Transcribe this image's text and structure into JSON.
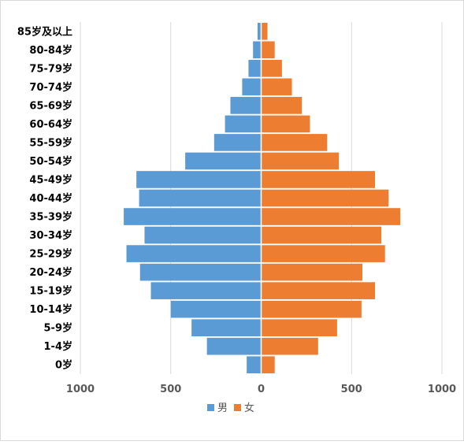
{
  "chart_data": {
    "type": "bar",
    "orientation": "horizontal",
    "layout": "population-pyramid",
    "title": "",
    "xlabel": "",
    "ylabel": "",
    "categories": [
      "85岁及以上",
      "80-84岁",
      "75-79岁",
      "70-74岁",
      "65-69岁",
      "60-64岁",
      "55-59岁",
      "50-54岁",
      "45-49岁",
      "40-44岁",
      "35-39岁",
      "30-34岁",
      "25-29岁",
      "20-24岁",
      "15-19岁",
      "10-14岁",
      "5-9岁",
      "1-4岁",
      "0岁"
    ],
    "series": [
      {
        "name": "男",
        "color": "#5B9BD5",
        "values": [
          20,
          45,
          70,
          105,
          170,
          200,
          260,
          420,
          690,
          675,
          760,
          645,
          745,
          670,
          610,
          500,
          385,
          300,
          80
        ]
      },
      {
        "name": "女",
        "color": "#ED7D31",
        "values": [
          35,
          75,
          115,
          170,
          225,
          270,
          365,
          430,
          630,
          705,
          770,
          665,
          685,
          560,
          630,
          555,
          420,
          315,
          75
        ]
      }
    ],
    "xlim": [
      -1000,
      1000
    ],
    "xticks": [
      -1000,
      -500,
      0,
      500,
      1000
    ],
    "xtick_labels": [
      "1000",
      "500",
      "0",
      "500",
      "1000"
    ],
    "grid": "vertical",
    "legend_position": "bottom"
  }
}
